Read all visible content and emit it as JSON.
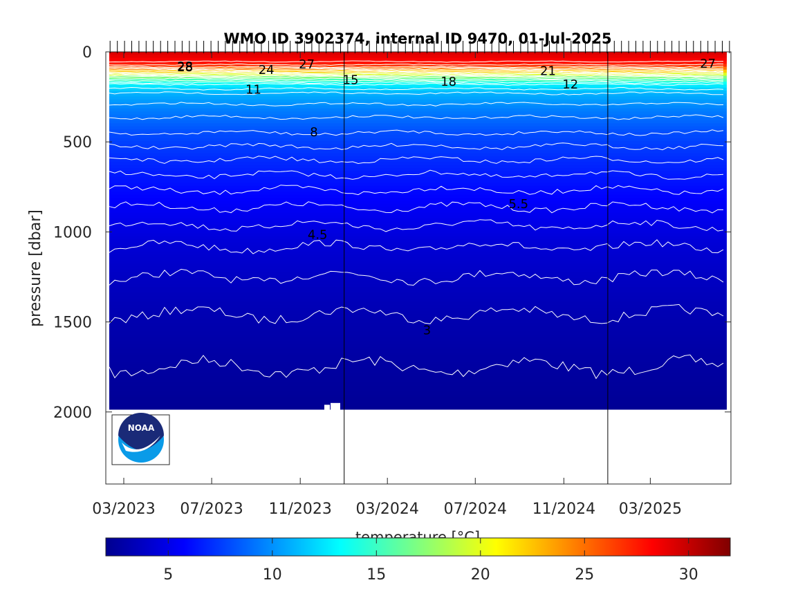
{
  "chart_data": {
    "type": "heatmap",
    "title": "WMO ID 3902374, internal ID 9470, 01-Jul-2025",
    "xlabel": "",
    "ylabel": "pressure [dbar]",
    "x_tick_labels": [
      "03/2023",
      "07/2023",
      "11/2023",
      "03/2024",
      "07/2024",
      "11/2024",
      "03/2025"
    ],
    "x_tick_dates": [
      "2023-03-01",
      "2023-07-01",
      "2023-11-01",
      "2024-03-01",
      "2024-07-01",
      "2024-11-01",
      "2025-03-01"
    ],
    "xlim": [
      "2023-02-04",
      "2025-06-21"
    ],
    "y_ticks": [
      0,
      500,
      1000,
      1500,
      2000
    ],
    "ylim": [
      0,
      2400
    ],
    "y_reversed": true,
    "vertical_markers": [
      "2024-01-01",
      "2025-01-01"
    ],
    "contour_isotherms_degC": [
      3,
      3.5,
      4,
      4.5,
      5,
      5.5,
      6,
      6.5,
      7,
      7.5,
      8,
      9,
      10,
      11,
      12,
      13,
      14,
      15,
      16,
      17,
      18,
      19,
      20,
      21,
      22,
      23,
      24,
      25,
      26,
      27,
      28
    ],
    "contour_labels": [
      {
        "text": "28",
        "date": "2023-05-25",
        "pressure": 85
      },
      {
        "text": "28",
        "date": "2023-05-25",
        "pressure": 80
      },
      {
        "text": "24",
        "date": "2023-09-15",
        "pressure": 100
      },
      {
        "text": "27",
        "date": "2023-11-10",
        "pressure": 70
      },
      {
        "text": "11",
        "date": "2023-08-28",
        "pressure": 210
      },
      {
        "text": "15",
        "date": "2024-01-10",
        "pressure": 155
      },
      {
        "text": "18",
        "date": "2024-05-25",
        "pressure": 165
      },
      {
        "text": "21",
        "date": "2024-10-10",
        "pressure": 105
      },
      {
        "text": "12",
        "date": "2024-11-10",
        "pressure": 180
      },
      {
        "text": "27",
        "date": "2025-05-20",
        "pressure": 65
      },
      {
        "text": "8",
        "date": "2023-11-20",
        "pressure": 445
      },
      {
        "text": "5.5",
        "date": "2024-08-30",
        "pressure": 845
      },
      {
        "text": "4.5",
        "date": "2023-11-25",
        "pressure": 1015
      },
      {
        "text": "3",
        "date": "2024-04-25",
        "pressure": 1545
      }
    ],
    "colorbar": {
      "label": "temperature [°C]",
      "range": [
        2,
        32
      ],
      "ticks": [
        5,
        10,
        15,
        20,
        25,
        30
      ],
      "colormap": "jet"
    },
    "grid": false
  },
  "logo": {
    "text": "NOAA"
  }
}
